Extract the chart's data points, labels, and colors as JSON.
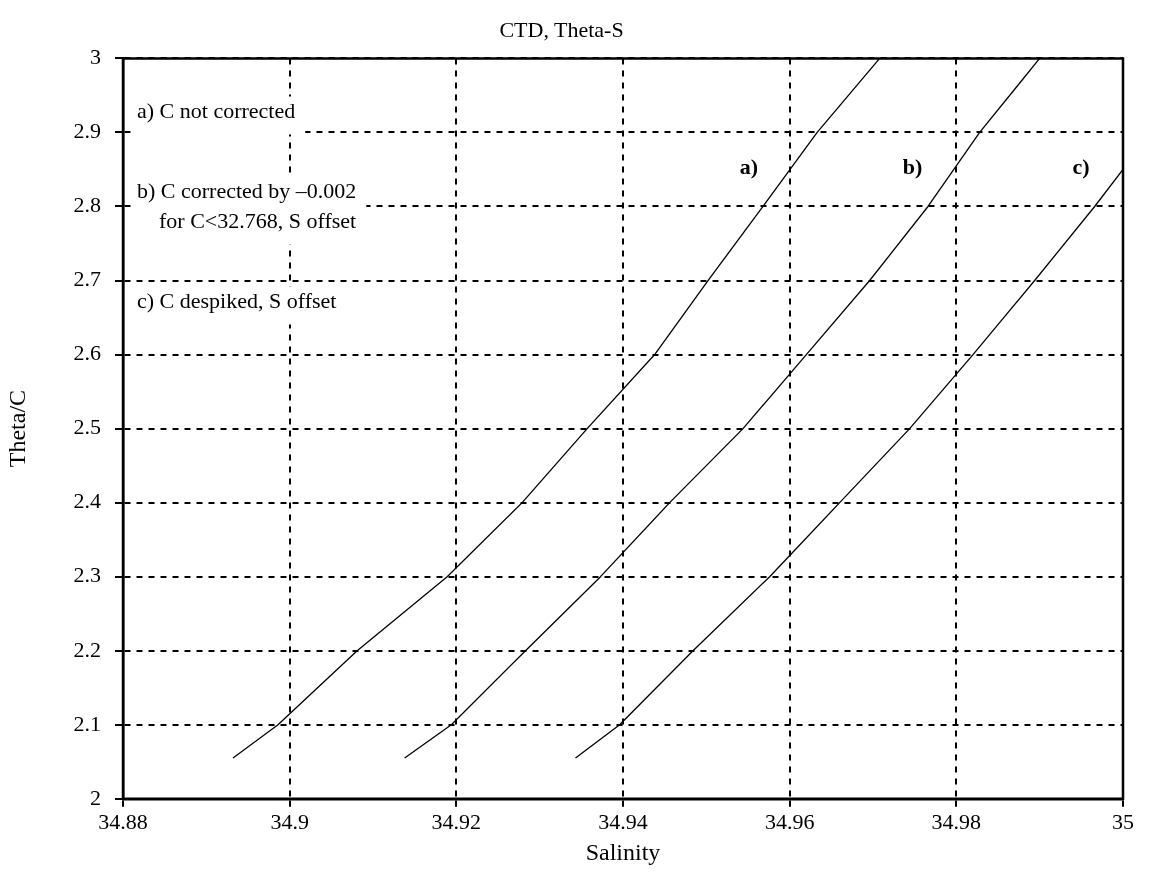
{
  "chart_data": {
    "type": "line",
    "title": "CTD, Theta-S",
    "xlabel": "Salinity",
    "ylabel": "Theta/C",
    "xlim": [
      34.88,
      35
    ],
    "xticks": [
      34.88,
      34.9,
      34.92,
      34.94,
      34.96,
      34.98,
      35
    ],
    "ylim": [
      2,
      3
    ],
    "yticks": [
      2,
      2.1,
      2.2,
      2.3,
      2.4,
      2.5,
      2.6,
      2.7,
      2.8,
      2.9,
      3
    ],
    "grid": true,
    "legend": false,
    "marker": "none",
    "series": [
      {
        "name": "a)",
        "color": "#000000",
        "x": [
          34.8932,
          34.8986,
          34.9081,
          34.9189,
          34.9279,
          34.9357,
          34.9438,
          34.9502,
          34.9568,
          34.9633,
          34.9708
        ],
        "values": [
          2.055,
          2.1,
          2.2,
          2.3,
          2.4,
          2.5,
          2.6,
          2.7,
          2.8,
          2.9,
          3.0
        ]
      },
      {
        "name": "b)",
        "color": "#000000",
        "x": [
          34.9138,
          34.9194,
          34.9283,
          34.9373,
          34.9456,
          34.9544,
          34.962,
          34.9696,
          34.9766,
          34.9828,
          34.99
        ],
        "values": [
          2.055,
          2.1,
          2.2,
          2.3,
          2.4,
          2.5,
          2.6,
          2.7,
          2.8,
          2.9,
          3.0
        ]
      },
      {
        "name": "c)",
        "color": "#000000",
        "x": [
          34.9343,
          34.9396,
          34.9484,
          34.9576,
          34.966,
          34.9744,
          34.982,
          34.9894,
          34.9966,
          35
        ],
        "values": [
          2.055,
          2.1,
          2.2,
          2.3,
          2.4,
          2.5,
          2.6,
          2.7,
          2.8,
          2.85
        ]
      }
    ],
    "annotations": [
      "a) C not corrected",
      "b) C corrected by –0.002\n    for C<32.768, S offset",
      "c) C despiked, S offset"
    ]
  }
}
